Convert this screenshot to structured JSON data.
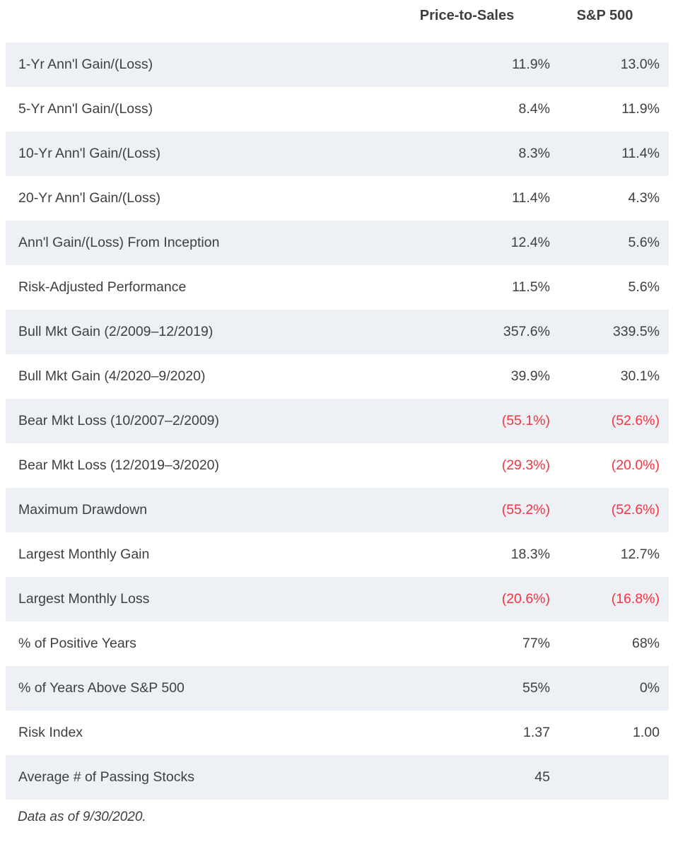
{
  "colors": {
    "row_stripe": "#edf0f5",
    "text": "#3e3f43",
    "negative": "#f7333f",
    "background": "#ffffff"
  },
  "chart_data": {
    "type": "table",
    "columns": [
      "",
      "Price-to-Sales",
      "S&P 500"
    ],
    "rows": [
      {
        "label": "1-Yr Ann'l Gain/(Loss)",
        "price_to_sales": "11.9%",
        "sp500": "13.0%",
        "negative": false
      },
      {
        "label": "5-Yr Ann'l Gain/(Loss)",
        "price_to_sales": "8.4%",
        "sp500": "11.9%",
        "negative": false
      },
      {
        "label": "10-Yr Ann'l Gain/(Loss)",
        "price_to_sales": "8.3%",
        "sp500": "11.4%",
        "negative": false
      },
      {
        "label": "20-Yr Ann'l Gain/(Loss)",
        "price_to_sales": "11.4%",
        "sp500": "4.3%",
        "negative": false
      },
      {
        "label": "Ann'l Gain/(Loss) From Inception",
        "price_to_sales": "12.4%",
        "sp500": "5.6%",
        "negative": false
      },
      {
        "label": "Risk-Adjusted Performance",
        "price_to_sales": "11.5%",
        "sp500": "5.6%",
        "negative": false
      },
      {
        "label": "Bull Mkt Gain (2/2009–12/2019)",
        "price_to_sales": "357.6%",
        "sp500": "339.5%",
        "negative": false
      },
      {
        "label": "Bull Mkt Gain (4/2020–9/2020)",
        "price_to_sales": "39.9%",
        "sp500": "30.1%",
        "negative": false
      },
      {
        "label": "Bear Mkt Loss (10/2007–2/2009)",
        "price_to_sales": "(55.1%)",
        "sp500": "(52.6%)",
        "negative": true
      },
      {
        "label": "Bear Mkt Loss (12/2019–3/2020)",
        "price_to_sales": "(29.3%)",
        "sp500": "(20.0%)",
        "negative": true
      },
      {
        "label": "Maximum Drawdown",
        "price_to_sales": "(55.2%)",
        "sp500": "(52.6%)",
        "negative": true
      },
      {
        "label": "Largest Monthly Gain",
        "price_to_sales": "18.3%",
        "sp500": "12.7%",
        "negative": false
      },
      {
        "label": "Largest Monthly Loss",
        "price_to_sales": "(20.6%)",
        "sp500": "(16.8%)",
        "negative": true
      },
      {
        "label": "% of Positive Years",
        "price_to_sales": "77%",
        "sp500": "68%",
        "negative": false
      },
      {
        "label": "% of Years Above S&P 500",
        "price_to_sales": "55%",
        "sp500": "0%",
        "negative": false
      },
      {
        "label": "Risk Index",
        "price_to_sales": "1.37",
        "sp500": "1.00",
        "negative": false
      },
      {
        "label": "Average # of Passing Stocks",
        "price_to_sales": "45",
        "sp500": "",
        "negative": false
      }
    ],
    "footnote": "Data as of 9/30/2020.",
    "layout": {
      "striped_rows": "odd rows shaded (1st, 3rd, ...)",
      "value_alignment": "right",
      "header_alignment": "center",
      "negative_format": "red text in parentheses"
    }
  }
}
